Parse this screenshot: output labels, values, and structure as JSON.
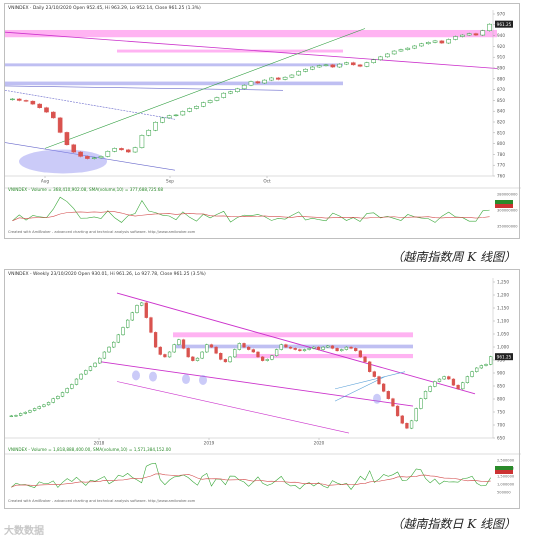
{
  "colors": {
    "up": "#2e9e3e",
    "down": "#d9534f",
    "pink": "#ff99ee",
    "blue": "#aaaaee",
    "trend": "#cc33cc",
    "ma": "#d24b4b",
    "vol": "#3aa83a"
  },
  "chart_data": [
    {
      "type": "candlestick",
      "header": "VNINDEX · Daily 23/10/2020 Open 952.45, Hi 963.29, Lo 952.14, Close 961.25 (1.3%)",
      "price_label": "961.25",
      "x_ticks": [
        "Aug",
        "Sep",
        "Oct"
      ],
      "y_ticks": [
        "970",
        "950",
        "940",
        "920",
        "910",
        "890",
        "880",
        "870",
        "850",
        "840",
        "820",
        "810",
        "800",
        "780",
        "770",
        "760"
      ],
      "close": [
        858,
        856,
        855,
        851,
        846,
        840,
        832,
        812,
        795,
        785,
        779,
        776,
        777,
        779,
        786,
        790,
        788,
        785,
        791,
        808,
        815,
        826,
        832,
        835,
        836,
        841,
        845,
        848,
        853,
        856,
        860,
        866,
        868,
        872,
        877,
        882,
        880,
        884,
        887,
        885,
        888,
        891,
        896,
        899,
        902,
        904,
        905,
        902,
        906,
        908,
        905,
        903,
        908,
        912,
        916,
        920,
        924,
        926,
        928,
        931,
        934,
        936,
        938,
        935,
        940,
        944,
        946,
        948,
        946,
        952,
        961
      ],
      "volume": {
        "header": "VNINDEX - Volume = 368,410,902.08, SMA(volume,10) = 377,688,725.68",
        "y_ticks": [
          "280000000",
          "300000000",
          "350000000"
        ]
      },
      "credit": "Created with AmiBroker - advanced charting and technical analysis software. http://www.amibroker.com"
    },
    {
      "type": "candlestick",
      "header": "VNINDEX - Weekly 23/10/2020 Open 930.01, Hi 961.26, Lo 927.78, Close 961.25 (3.5%)",
      "price_label": "961.25",
      "x_ticks": [
        "2018",
        "2019",
        "2020"
      ],
      "y_ticks": [
        "1,250",
        "1,200",
        "1,150",
        "1,100",
        "1,050",
        "1,000",
        "950",
        "900",
        "850",
        "800",
        "750",
        "700",
        "650"
      ],
      "close": [
        720,
        722,
        730,
        735,
        742,
        750,
        758,
        765,
        775,
        790,
        800,
        815,
        832,
        848,
        870,
        890,
        905,
        920,
        935,
        955,
        980,
        1000,
        1020,
        1050,
        1080,
        1110,
        1140,
        1170,
        1180,
        1120,
        1060,
        1000,
        970,
        960,
        980,
        1010,
        1030,
        995,
        960,
        945,
        955,
        980,
        1010,
        1000,
        975,
        950,
        940,
        960,
        990,
        1015,
        1000,
        990,
        980,
        960,
        945,
        950,
        965,
        990,
        1010,
        1000,
        995,
        990,
        985,
        990,
        995,
        1000,
        990,
        1000,
        1005,
        995,
        985,
        990,
        1000,
        995,
        985,
        960,
        940,
        900,
        880,
        850,
        820,
        790,
        760,
        720,
        690,
        670,
        700,
        750,
        790,
        820,
        840,
        860,
        870,
        880,
        870,
        845,
        830,
        855,
        880,
        900,
        915,
        925,
        930,
        961
      ],
      "volume": {
        "header": "VNINDEX - Volume = 1,818,888,400.00, SMA(volume,10) = 1,571,384,152.00",
        "y_ticks": [
          "2,500000",
          "2,000000",
          "1,500000",
          "1,000000",
          "500000"
        ]
      },
      "credit": "Created with AmiBroker - advanced charting and technical analysis software. http://www.amibroker.com"
    }
  ],
  "captions": [
    "（越南指数周 K 线图）",
    "（越南指数日 K 线图）"
  ],
  "watermark": "大数数据"
}
